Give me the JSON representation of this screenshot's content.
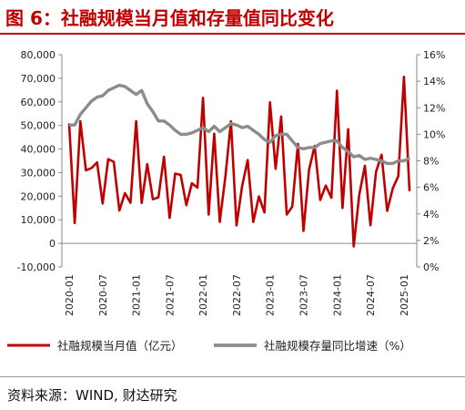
{
  "header": {
    "title": "图 6：社融规模当月值和存量值同比变化"
  },
  "footer": {
    "source": "资料来源：WIND, 财达研究"
  },
  "colors": {
    "title_red": "#c00000",
    "series_red": "#c00000",
    "series_gray": "#8c8c8c"
  },
  "chart_data": {
    "type": "line",
    "title": "",
    "x_tick_labels": [
      "2020-01",
      "2020-07",
      "2021-01",
      "2021-07",
      "2022-01",
      "2022-07",
      "2023-01",
      "2023-07",
      "2024-01",
      "2024-07",
      "2025-01"
    ],
    "x": [
      "2020-01",
      "2020-02",
      "2020-03",
      "2020-04",
      "2020-05",
      "2020-06",
      "2020-07",
      "2020-08",
      "2020-09",
      "2020-10",
      "2020-11",
      "2020-12",
      "2021-01",
      "2021-02",
      "2021-03",
      "2021-04",
      "2021-05",
      "2021-06",
      "2021-07",
      "2021-08",
      "2021-09",
      "2021-10",
      "2021-11",
      "2021-12",
      "2022-01",
      "2022-02",
      "2022-03",
      "2022-04",
      "2022-05",
      "2022-06",
      "2022-07",
      "2022-08",
      "2022-09",
      "2022-10",
      "2022-11",
      "2022-12",
      "2023-01",
      "2023-02",
      "2023-03",
      "2023-04",
      "2023-05",
      "2023-06",
      "2023-07",
      "2023-08",
      "2023-09",
      "2023-10",
      "2023-11",
      "2023-12",
      "2024-01",
      "2024-02",
      "2024-03",
      "2024-04",
      "2024-05",
      "2024-06",
      "2024-07",
      "2024-08",
      "2024-09",
      "2024-10",
      "2024-11",
      "2024-12",
      "2025-01",
      "2025-02"
    ],
    "y_left": {
      "ylim": [
        -10000,
        80000
      ],
      "ticks": [
        "-10,000",
        "0",
        "10,000",
        "20,000",
        "30,000",
        "40,000",
        "50,000",
        "60,000",
        "70,000",
        "80,000"
      ]
    },
    "y_right": {
      "ylim": [
        0,
        16
      ],
      "ticks": [
        "0%",
        "2%",
        "4%",
        "6%",
        "8%",
        "10%",
        "12%",
        "14%",
        "16%"
      ]
    },
    "series": [
      {
        "name": "社融规模当月值（亿元）",
        "axis": "left",
        "values": [
          50700,
          8600,
          51800,
          31000,
          31900,
          34300,
          16900,
          35700,
          34600,
          13900,
          21300,
          17200,
          51800,
          17100,
          33600,
          18700,
          19500,
          36700,
          10800,
          29600,
          29000,
          16200,
          25500,
          23600,
          61700,
          12200,
          46500,
          9100,
          28400,
          51700,
          7600,
          24300,
          35300,
          9100,
          19900,
          13100,
          59800,
          31600,
          53800,
          12200,
          15600,
          42200,
          5300,
          31200,
          41300,
          18400,
          24500,
          19300,
          64700,
          15000,
          48400,
          -1300,
          20600,
          32900,
          7700,
          30300,
          37600,
          13800,
          23300,
          28500,
          70600,
          22300
        ]
      },
      {
        "name": "社融规模存量同比增速（%）",
        "axis": "right",
        "values": [
          10.7,
          10.7,
          11.5,
          12.0,
          12.5,
          12.8,
          12.9,
          13.3,
          13.5,
          13.7,
          13.6,
          13.3,
          13.0,
          13.3,
          12.3,
          11.7,
          11.0,
          11.0,
          10.7,
          10.3,
          10.0,
          10.0,
          10.1,
          10.3,
          10.5,
          10.2,
          10.6,
          10.2,
          10.5,
          10.8,
          10.7,
          10.5,
          10.6,
          10.3,
          10.0,
          9.6,
          9.4,
          9.9,
          10.0,
          10.0,
          9.5,
          9.0,
          8.9,
          9.0,
          9.0,
          9.3,
          9.4,
          9.5,
          9.5,
          9.0,
          8.7,
          8.3,
          8.4,
          8.1,
          8.2,
          8.1,
          8.0,
          7.8,
          7.8,
          8.0,
          8.0,
          8.2
        ]
      }
    ],
    "legend": {
      "position": "bottom"
    },
    "grid": false
  }
}
